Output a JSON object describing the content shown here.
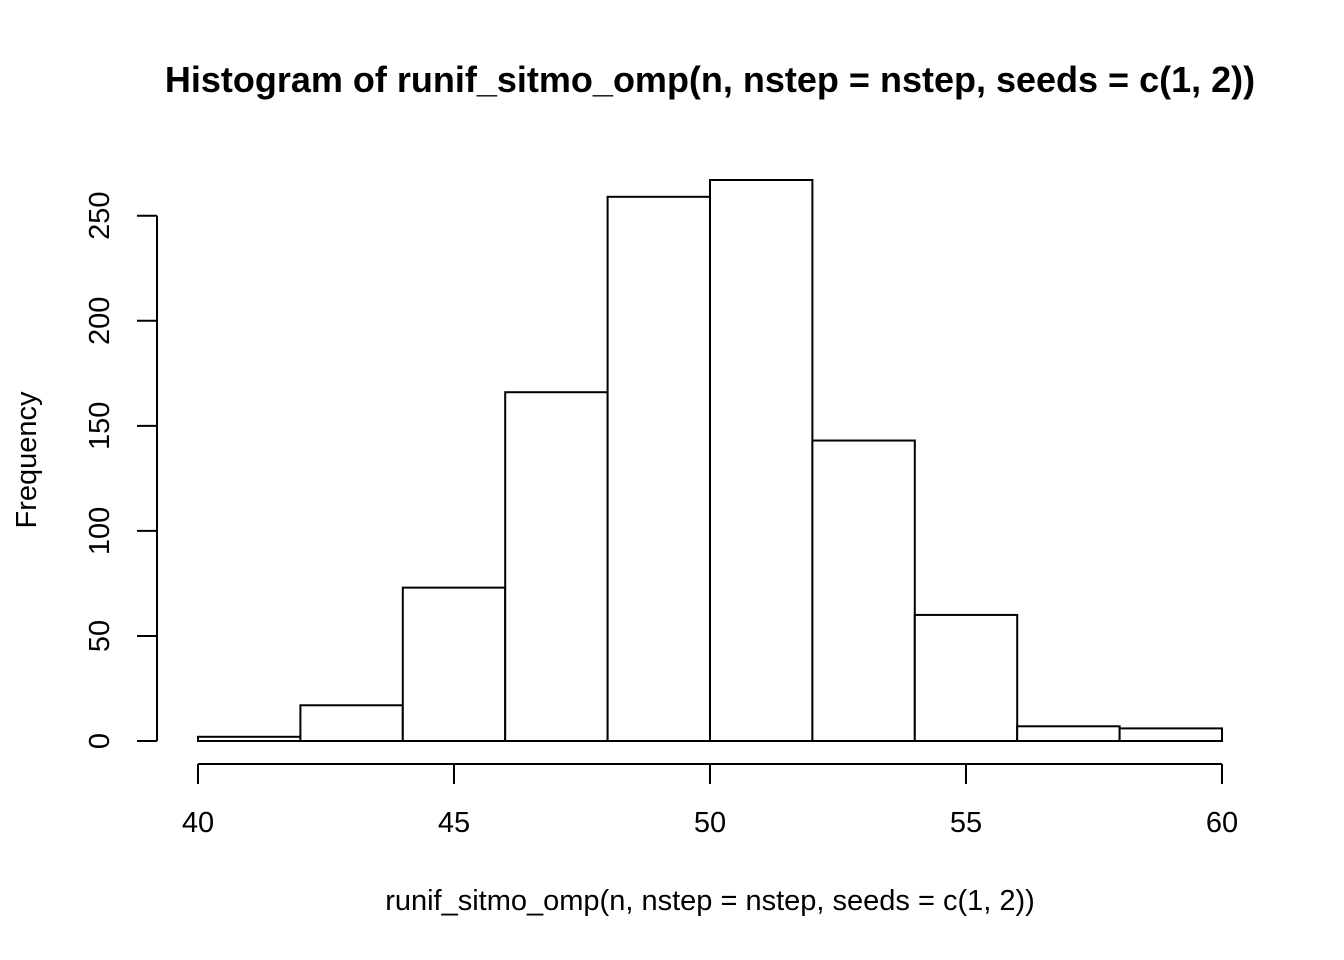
{
  "chart_data": {
    "type": "bar",
    "title": "Histogram of runif_sitmo_omp(n, nstep = nstep, seeds = c(1, 2))",
    "xlabel": "runif_sitmo_omp(n, nstep = nstep, seeds = c(1, 2))",
    "ylabel": "Frequency",
    "bins": [
      {
        "start": 40,
        "end": 42,
        "count": 2
      },
      {
        "start": 42,
        "end": 44,
        "count": 17
      },
      {
        "start": 44,
        "end": 46,
        "count": 73
      },
      {
        "start": 46,
        "end": 48,
        "count": 166
      },
      {
        "start": 48,
        "end": 50,
        "count": 259
      },
      {
        "start": 50,
        "end": 52,
        "count": 267
      },
      {
        "start": 52,
        "end": 54,
        "count": 143
      },
      {
        "start": 54,
        "end": 56,
        "count": 60
      },
      {
        "start": 56,
        "end": 58,
        "count": 7
      },
      {
        "start": 58,
        "end": 60,
        "count": 6
      }
    ],
    "xlim": [
      40,
      60
    ],
    "ylim": [
      0,
      267
    ],
    "x_ticks": [
      40,
      45,
      50,
      55,
      60
    ],
    "y_ticks": [
      0,
      50,
      100,
      150,
      200,
      250
    ],
    "grid": false,
    "bar_fill": "#ffffff",
    "bar_stroke": "#000000"
  }
}
